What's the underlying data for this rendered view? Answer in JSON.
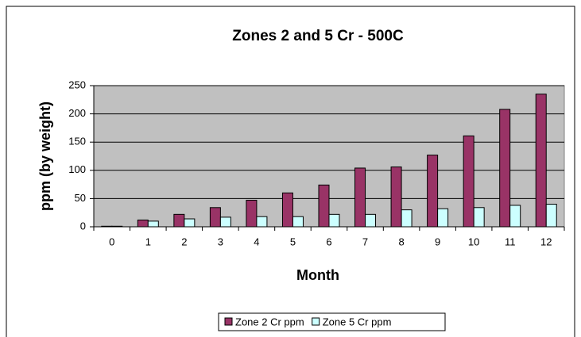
{
  "chart_data": {
    "type": "bar",
    "title": "Zones 2 and 5 Cr - 500C",
    "x_label": "Month",
    "y_label": "ppm (by weight)",
    "categories": [
      "0",
      "1",
      "2",
      "3",
      "4",
      "5",
      "6",
      "7",
      "8",
      "9",
      "10",
      "11",
      "12"
    ],
    "series": [
      {
        "name": "Zone 2 Cr ppm",
        "color": "#993366",
        "values": [
          1,
          12,
          22,
          34,
          47,
          60,
          74,
          104,
          106,
          127,
          161,
          208,
          235
        ]
      },
      {
        "name": "Zone 5 Cr ppm",
        "color": "#ccffff",
        "values": [
          1,
          10,
          14,
          17,
          18,
          18,
          22,
          22,
          30,
          32,
          34,
          38,
          40
        ]
      }
    ],
    "ylim": [
      0,
      250
    ],
    "yticks": [
      0,
      50,
      100,
      150,
      200,
      250
    ],
    "grid": true,
    "legend": "bottom"
  }
}
